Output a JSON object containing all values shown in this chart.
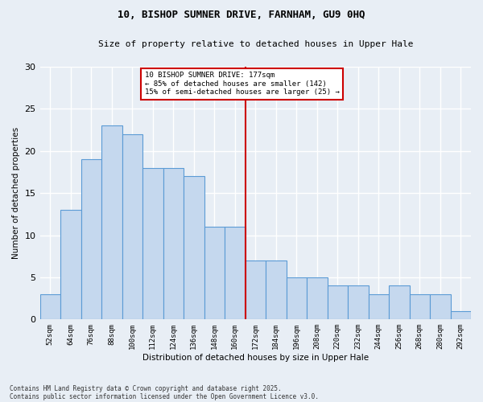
{
  "title_line1": "10, BISHOP SUMNER DRIVE, FARNHAM, GU9 0HQ",
  "title_line2": "Size of property relative to detached houses in Upper Hale",
  "xlabel": "Distribution of detached houses by size in Upper Hale",
  "ylabel": "Number of detached properties",
  "categories": [
    "52sqm",
    "64sqm",
    "76sqm",
    "88sqm",
    "100sqm",
    "112sqm",
    "124sqm",
    "136sqm",
    "148sqm",
    "160sqm",
    "172sqm",
    "184sqm",
    "196sqm",
    "208sqm",
    "220sqm",
    "232sqm",
    "244sqm",
    "256sqm",
    "268sqm",
    "280sqm",
    "292sqm"
  ],
  "values": [
    3,
    13,
    19,
    23,
    22,
    18,
    18,
    17,
    11,
    11,
    7,
    7,
    5,
    5,
    4,
    4,
    3,
    4,
    3,
    3,
    1
  ],
  "bar_color": "#c5d8ee",
  "bar_edge_color": "#5b9bd5",
  "vline_idx": 10,
  "vline_color": "#cc0000",
  "ylim": [
    0,
    30
  ],
  "yticks": [
    0,
    5,
    10,
    15,
    20,
    25,
    30
  ],
  "annotation_text": "10 BISHOP SUMNER DRIVE: 177sqm\n← 85% of detached houses are smaller (142)\n15% of semi-detached houses are larger (25) →",
  "annotation_box_color": "#ffffff",
  "annotation_box_edge": "#cc0000",
  "footnote1": "Contains HM Land Registry data © Crown copyright and database right 2025.",
  "footnote2": "Contains public sector information licensed under the Open Government Licence v3.0.",
  "bg_color": "#e8eef5",
  "grid_color": "#ffffff"
}
